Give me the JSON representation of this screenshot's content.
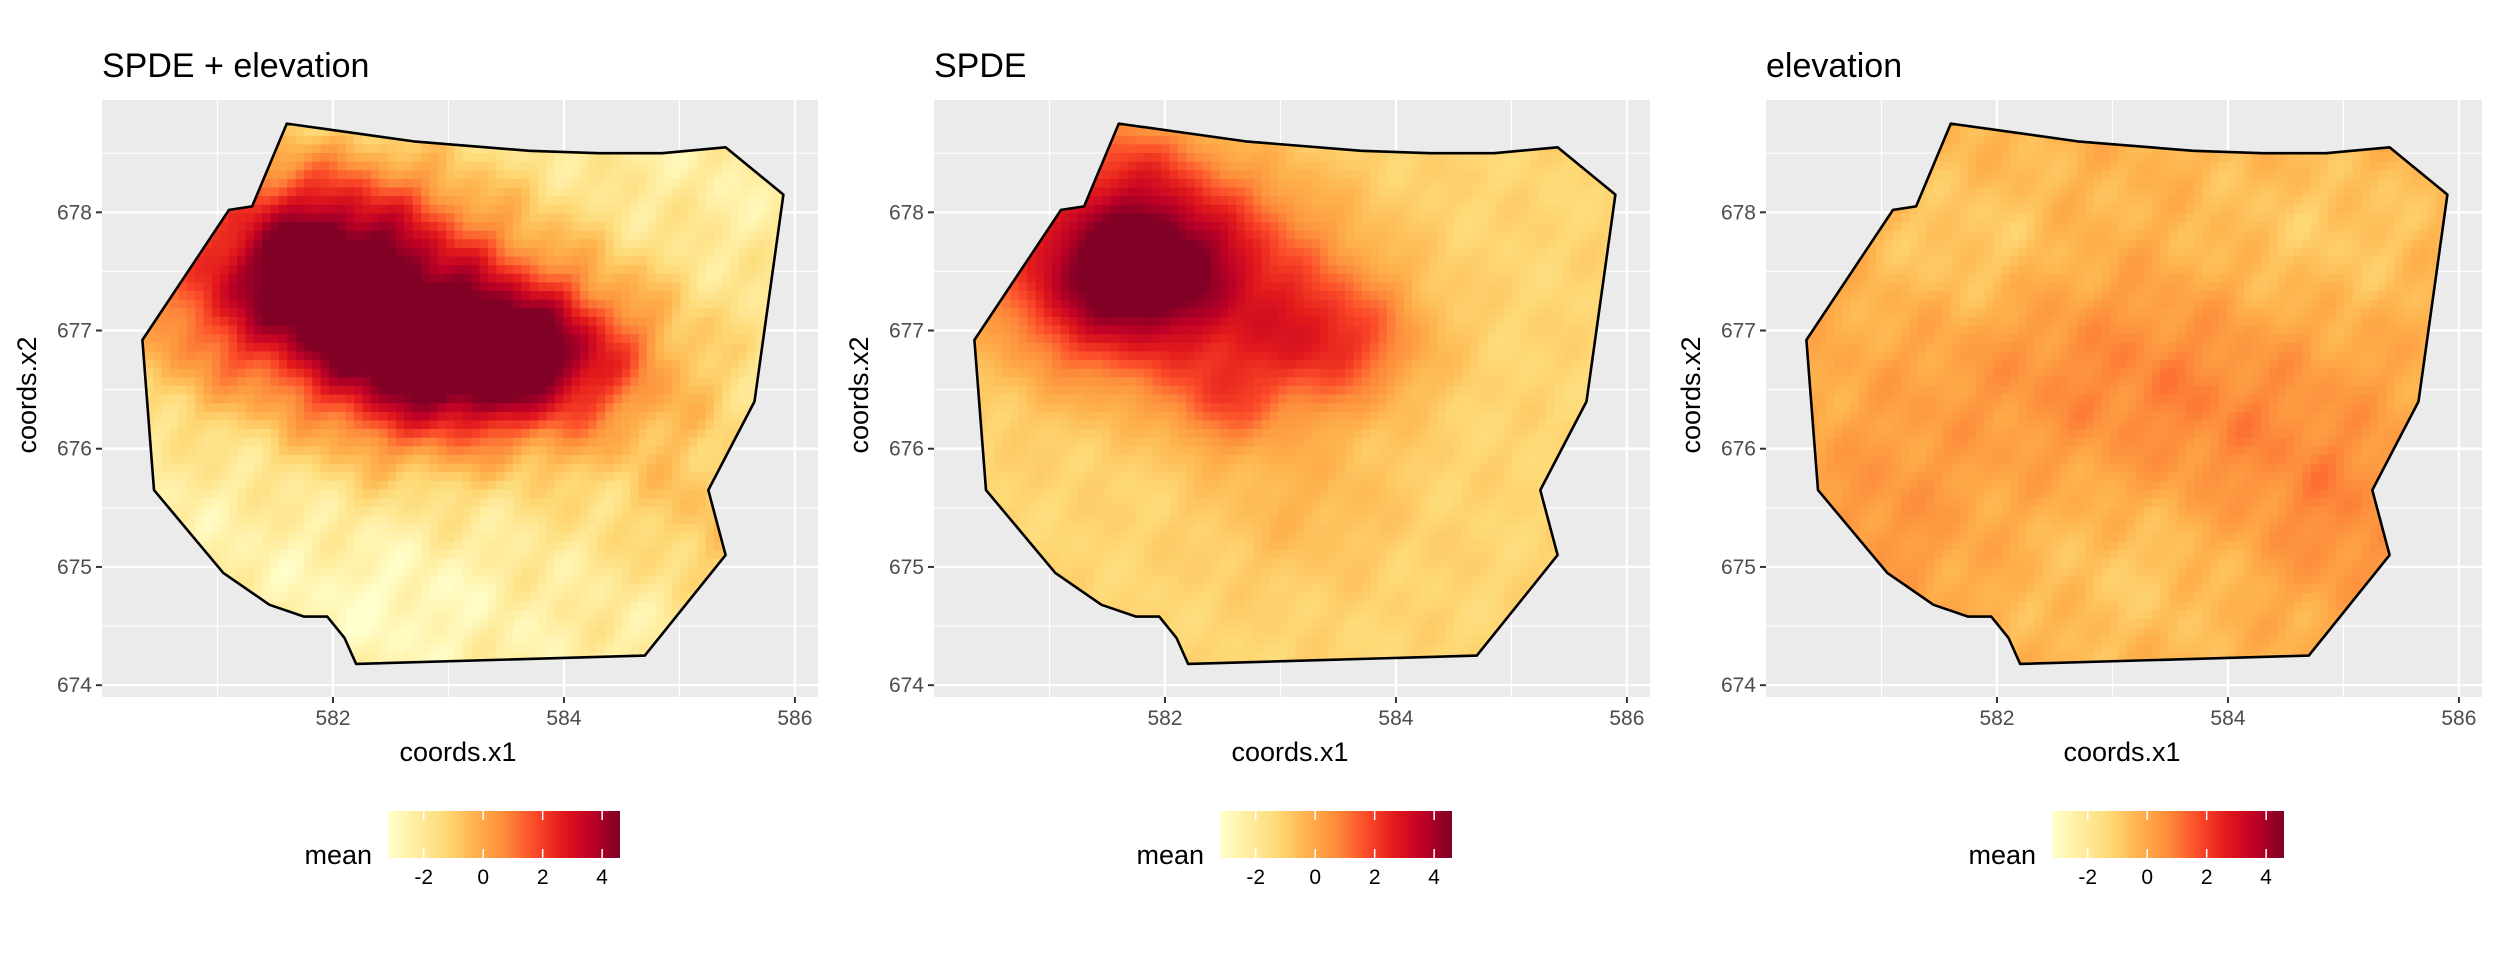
{
  "colors": {
    "panel_background": "#ebebeb",
    "grid": "#ffffff",
    "palette": [
      "#ffffcc",
      "#ffeda0",
      "#fed976",
      "#feb24c",
      "#fd8d3c",
      "#fc4e2a",
      "#e31a1c",
      "#bd0026",
      "#800026"
    ],
    "outline": "#000000"
  },
  "chart_data": [
    {
      "type": "heatmap",
      "title": "SPDE + elevation",
      "xlabel": "coords.x1",
      "ylabel": "coords.x2",
      "x_ticks": [
        582,
        584,
        586
      ],
      "y_ticks": [
        674,
        675,
        676,
        677,
        678
      ],
      "xlim": [
        580.0,
        586.2
      ],
      "ylim": [
        673.9,
        678.95
      ],
      "fill_variable": "mean",
      "legend": {
        "title": "mean",
        "ticks": [
          -2,
          0,
          2,
          4
        ],
        "range": [
          -3.2,
          4.6
        ],
        "position": "bottom"
      },
      "boundary": [
        [
          581.6,
          678.75
        ],
        [
          582.7,
          678.6
        ],
        [
          583.7,
          678.52
        ],
        [
          584.3,
          678.5
        ],
        [
          584.85,
          678.5
        ],
        [
          585.4,
          678.55
        ],
        [
          585.9,
          678.15
        ],
        [
          585.65,
          676.4
        ],
        [
          585.25,
          675.65
        ],
        [
          585.4,
          675.1
        ],
        [
          584.7,
          674.25
        ],
        [
          582.2,
          674.18
        ],
        [
          582.1,
          674.4
        ],
        [
          581.95,
          674.58
        ],
        [
          581.75,
          674.58
        ],
        [
          581.45,
          674.68
        ],
        [
          581.05,
          674.95
        ],
        [
          580.45,
          675.65
        ],
        [
          580.35,
          676.92
        ],
        [
          581.1,
          678.02
        ],
        [
          581.3,
          678.05
        ]
      ],
      "field": {
        "base": -2.4,
        "hotspots": [
          [
            581.7,
            677.5,
            0.8,
            0.65,
            5.7
          ],
          [
            583.6,
            676.8,
            0.7,
            0.45,
            6.2
          ],
          [
            582.6,
            676.6,
            0.7,
            0.55,
            3.8
          ],
          [
            582.5,
            677.6,
            1.0,
            0.6,
            3.0
          ],
          [
            584.7,
            676.3,
            0.9,
            0.9,
            1.4
          ],
          [
            580.7,
            676.8,
            0.4,
            0.5,
            1.0
          ],
          [
            585.3,
            675.3,
            0.4,
            0.4,
            1.0
          ],
          [
            582.5,
            674.7,
            0.6,
            0.35,
            -0.6
          ]
        ],
        "texture": 0.45
      }
    },
    {
      "type": "heatmap",
      "title": "SPDE",
      "xlabel": "coords.x1",
      "ylabel": "coords.x2",
      "x_ticks": [
        582,
        584,
        586
      ],
      "y_ticks": [
        674,
        675,
        676,
        677,
        678
      ],
      "xlim": [
        580.0,
        586.2
      ],
      "ylim": [
        673.9,
        678.95
      ],
      "fill_variable": "mean",
      "legend": {
        "title": "mean",
        "ticks": [
          -2,
          0,
          2,
          4
        ],
        "range": [
          -3.2,
          4.6
        ],
        "position": "bottom"
      },
      "boundary": [
        [
          581.6,
          678.75
        ],
        [
          582.7,
          678.6
        ],
        [
          583.7,
          678.52
        ],
        [
          584.3,
          678.5
        ],
        [
          584.85,
          678.5
        ],
        [
          585.4,
          678.55
        ],
        [
          585.9,
          678.15
        ],
        [
          585.65,
          676.4
        ],
        [
          585.25,
          675.65
        ],
        [
          585.4,
          675.1
        ],
        [
          584.7,
          674.25
        ],
        [
          582.2,
          674.18
        ],
        [
          582.1,
          674.4
        ],
        [
          581.95,
          674.58
        ],
        [
          581.75,
          674.58
        ],
        [
          581.45,
          674.68
        ],
        [
          581.05,
          674.95
        ],
        [
          580.45,
          675.65
        ],
        [
          580.35,
          676.92
        ],
        [
          581.1,
          678.02
        ],
        [
          581.3,
          678.05
        ]
      ],
      "field": {
        "base": -1.2,
        "hotspots": [
          [
            581.6,
            677.5,
            0.7,
            0.6,
            4.8
          ],
          [
            582.2,
            677.6,
            0.9,
            0.55,
            3.0
          ],
          [
            583.4,
            676.9,
            0.55,
            0.4,
            3.2
          ],
          [
            582.5,
            676.4,
            0.35,
            0.3,
            2.0
          ],
          [
            581.7,
            678.5,
            0.4,
            0.3,
            1.2
          ],
          [
            583.2,
            675.6,
            0.6,
            0.5,
            0.8
          ]
        ],
        "texture": 0.2
      }
    },
    {
      "type": "heatmap",
      "title": "elevation",
      "xlabel": "coords.x1",
      "ylabel": "coords.x2",
      "x_ticks": [
        582,
        584,
        586
      ],
      "y_ticks": [
        674,
        675,
        676,
        677,
        678
      ],
      "xlim": [
        580.0,
        586.2
      ],
      "ylim": [
        673.9,
        678.95
      ],
      "fill_variable": "mean",
      "legend": {
        "title": "mean",
        "ticks": [
          -2,
          0,
          2,
          4
        ],
        "range": [
          -3.2,
          4.6
        ],
        "position": "bottom"
      },
      "boundary": [
        [
          581.6,
          678.75
        ],
        [
          582.7,
          678.6
        ],
        [
          583.7,
          678.52
        ],
        [
          584.3,
          678.5
        ],
        [
          584.85,
          678.5
        ],
        [
          585.4,
          678.55
        ],
        [
          585.9,
          678.15
        ],
        [
          585.65,
          676.4
        ],
        [
          585.25,
          675.65
        ],
        [
          585.4,
          675.1
        ],
        [
          584.7,
          674.25
        ],
        [
          582.2,
          674.18
        ],
        [
          582.1,
          674.4
        ],
        [
          581.95,
          674.58
        ],
        [
          581.75,
          674.58
        ],
        [
          581.45,
          674.68
        ],
        [
          581.05,
          674.95
        ],
        [
          580.45,
          675.65
        ],
        [
          580.35,
          676.92
        ],
        [
          581.1,
          678.02
        ],
        [
          581.3,
          678.05
        ]
      ],
      "field": {
        "base": -0.3,
        "hotspots": [
          [
            582.9,
            676.7,
            1.2,
            0.6,
            0.9
          ],
          [
            584.3,
            676.0,
            1.0,
            0.6,
            0.7
          ],
          [
            581.0,
            675.4,
            0.6,
            0.6,
            0.7
          ],
          [
            585.0,
            675.3,
            0.5,
            0.5,
            0.7
          ],
          [
            581.8,
            677.7,
            0.6,
            0.5,
            -0.7
          ],
          [
            583.2,
            675.0,
            0.6,
            0.5,
            -0.6
          ],
          [
            584.8,
            677.8,
            0.8,
            0.5,
            -0.6
          ]
        ],
        "texture": 0.3
      }
    }
  ]
}
